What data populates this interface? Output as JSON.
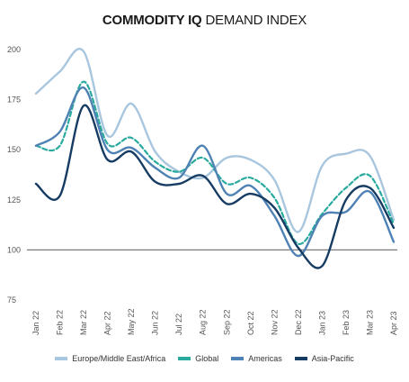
{
  "title": {
    "bold": "COMMODITY IQ",
    "light": "DEMAND INDEX"
  },
  "chart_data": {
    "type": "line",
    "title": "COMMODITY IQ DEMAND INDEX",
    "xlabel": "",
    "ylabel": "",
    "x": [
      "Jan 22",
      "Feb 22",
      "Mar 22",
      "Apr 22",
      "May 22",
      "Jun 22",
      "Jul 22",
      "Aug 22",
      "Sep 22",
      "Oct 22",
      "Nov 22",
      "Dec 22",
      "Jan 23",
      "Feb 23",
      "Mar 23",
      "Apr 23"
    ],
    "ylim": [
      75,
      200
    ],
    "yticks": [
      75,
      100,
      125,
      150,
      175,
      200
    ],
    "reference_line": 100,
    "grid": false,
    "legend_position": "bottom",
    "series": [
      {
        "name": "Europe/Middle East/Africa",
        "color": "#a9c6df",
        "dash": false,
        "values": [
          178,
          189,
          199,
          157,
          173,
          149,
          139,
          136,
          146,
          145,
          135,
          109,
          142,
          148,
          147,
          115
        ]
      },
      {
        "name": "Global",
        "color": "#2aaa9f",
        "dash": true,
        "values": [
          152,
          152,
          184,
          153,
          156,
          144,
          139,
          146,
          133,
          136,
          126,
          103,
          118,
          131,
          137,
          113
        ]
      },
      {
        "name": "Americas",
        "color": "#4f82b4",
        "dash": false,
        "values": [
          152,
          159,
          181,
          150,
          151,
          141,
          136,
          152,
          128,
          132,
          117,
          97,
          117,
          119,
          129,
          104
        ]
      },
      {
        "name": "Asia-Pacific",
        "color": "#173c63",
        "dash": false,
        "values": [
          133,
          127,
          172,
          145,
          149,
          134,
          133,
          137,
          123,
          128,
          121,
          101,
          92,
          125,
          131,
          111
        ]
      }
    ]
  }
}
